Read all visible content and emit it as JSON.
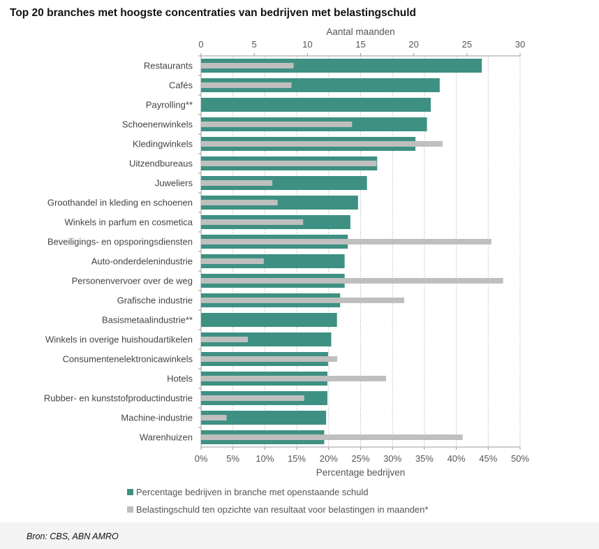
{
  "title": "Top 20 branches met hoogste concentraties van bedrijven met belastingschuld",
  "source": "Bron: CBS, ABN AMRO",
  "colors": {
    "percentage": "#3e9182",
    "months": "#bfbfbf"
  },
  "chart_data": {
    "type": "bar",
    "orientation": "horizontal",
    "categories": [
      "Restaurants",
      "Cafés",
      "Payrolling**",
      "Schoenenwinkels",
      "Kledingwinkels",
      "Uitzendbureaus",
      "Juweliers",
      "Groothandel in kleding en schoenen",
      "Winkels in parfum en cosmetica",
      "Beveiligings- en opsporingsdiensten",
      "Auto-onderdelenindustrie",
      "Personenvervoer over de weg",
      "Grafische industrie",
      "Basismetaalindustrie**",
      "Winkels in overige huishoudartikelen",
      "Consumentenelektronicawinkels",
      "Hotels",
      "Rubber- en kunststofproductindustrie",
      "Machine-industrie",
      "Warenhuizen"
    ],
    "series": [
      {
        "name": "Percentage bedrijven in branche met openstaande schuld",
        "axis": "bottom",
        "unit": "%",
        "values": [
          44.0,
          37.4,
          36.0,
          35.4,
          33.6,
          27.6,
          26.0,
          24.6,
          23.4,
          23.0,
          22.5,
          22.5,
          21.8,
          21.3,
          20.4,
          19.9,
          19.8,
          19.8,
          19.6,
          19.3
        ]
      },
      {
        "name": "Belastingschuld ten opzichte van resultaat voor belastingen in maanden*",
        "axis": "top",
        "unit": "maanden",
        "values": [
          8.7,
          8.5,
          null,
          14.2,
          22.7,
          16.5,
          6.7,
          7.2,
          9.6,
          27.3,
          5.9,
          28.4,
          19.1,
          null,
          4.4,
          12.8,
          17.4,
          9.7,
          2.4,
          24.6
        ]
      }
    ],
    "bottom_axis": {
      "label": "Percentage bedrijven",
      "range": [
        0,
        50
      ],
      "ticks": [
        "0%",
        "5%",
        "10%",
        "15%",
        "20%",
        "25%",
        "30%",
        "35%",
        "40%",
        "45%",
        "50%"
      ]
    },
    "top_axis": {
      "label": "Aantal maanden",
      "range": [
        0,
        30
      ],
      "ticks": [
        "0",
        "5",
        "10",
        "15",
        "20",
        "25",
        "30"
      ]
    },
    "grid": "vertical dotted",
    "legend_position": "bottom-left"
  }
}
